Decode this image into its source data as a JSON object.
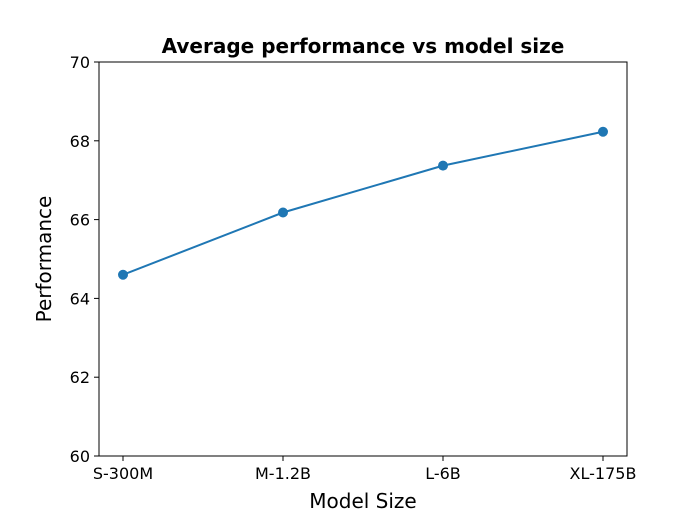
{
  "chart_data": {
    "type": "line",
    "title": "Average performance vs model size",
    "xlabel": "Model Size",
    "ylabel": "Performance",
    "categories": [
      "S-300M",
      "M-1.2B",
      "L-6B",
      "XL-175B"
    ],
    "series": [
      {
        "values": [
          64.6,
          66.18,
          67.37,
          68.23
        ],
        "color": "#1f77b4"
      }
    ],
    "ylim": [
      60,
      70
    ],
    "yticks": [
      "60",
      "62",
      "64",
      "66",
      "68",
      "70"
    ],
    "grid": false
  }
}
